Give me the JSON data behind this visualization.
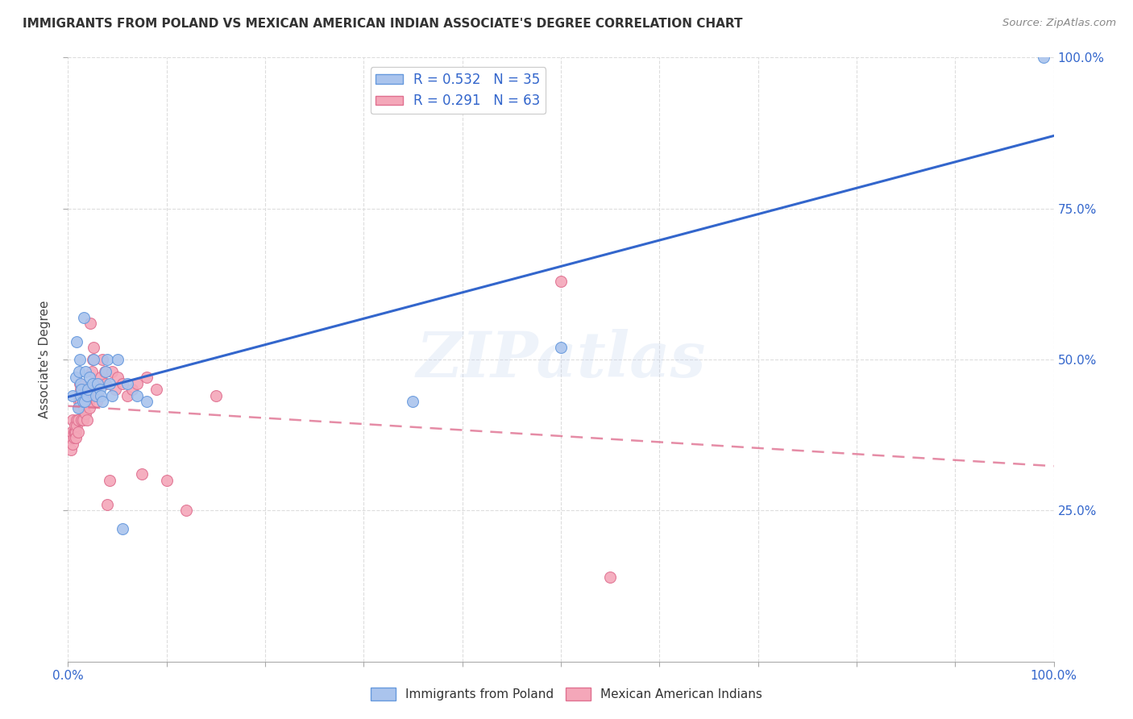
{
  "title": "IMMIGRANTS FROM POLAND VS MEXICAN AMERICAN INDIAN ASSOCIATE'S DEGREE CORRELATION CHART",
  "source": "Source: ZipAtlas.com",
  "ylabel": "Associate's Degree",
  "series1": {
    "label": "Immigrants from Poland",
    "color": "#aac4ed",
    "border_color": "#6699dd",
    "R": 0.532,
    "N": 35,
    "line_color": "#3366cc",
    "x": [
      0.005,
      0.008,
      0.009,
      0.01,
      0.011,
      0.012,
      0.013,
      0.013,
      0.014,
      0.015,
      0.016,
      0.017,
      0.018,
      0.019,
      0.02,
      0.022,
      0.025,
      0.026,
      0.028,
      0.03,
      0.032,
      0.033,
      0.035,
      0.038,
      0.04,
      0.042,
      0.045,
      0.05,
      0.055,
      0.06,
      0.07,
      0.08,
      0.35,
      0.5,
      0.99
    ],
    "y": [
      0.44,
      0.47,
      0.53,
      0.42,
      0.48,
      0.5,
      0.46,
      0.44,
      0.45,
      0.43,
      0.57,
      0.43,
      0.48,
      0.44,
      0.45,
      0.47,
      0.46,
      0.5,
      0.44,
      0.46,
      0.45,
      0.44,
      0.43,
      0.48,
      0.5,
      0.46,
      0.44,
      0.5,
      0.22,
      0.46,
      0.44,
      0.43,
      0.43,
      0.52,
      1.0
    ]
  },
  "series2": {
    "label": "Mexican American Indians",
    "color": "#f4a7b9",
    "border_color": "#e07090",
    "R": 0.291,
    "N": 63,
    "line_color": "#dd6688",
    "x": [
      0.002,
      0.003,
      0.004,
      0.005,
      0.005,
      0.006,
      0.006,
      0.007,
      0.007,
      0.008,
      0.008,
      0.009,
      0.009,
      0.01,
      0.01,
      0.011,
      0.011,
      0.012,
      0.012,
      0.013,
      0.013,
      0.014,
      0.015,
      0.015,
      0.016,
      0.016,
      0.017,
      0.018,
      0.018,
      0.019,
      0.02,
      0.021,
      0.022,
      0.023,
      0.024,
      0.025,
      0.026,
      0.027,
      0.028,
      0.029,
      0.03,
      0.032,
      0.033,
      0.035,
      0.037,
      0.038,
      0.04,
      0.042,
      0.045,
      0.048,
      0.05,
      0.055,
      0.06,
      0.065,
      0.07,
      0.075,
      0.08,
      0.09,
      0.1,
      0.12,
      0.15,
      0.5,
      0.55
    ],
    "y": [
      0.37,
      0.35,
      0.38,
      0.36,
      0.4,
      0.37,
      0.38,
      0.38,
      0.39,
      0.38,
      0.37,
      0.4,
      0.39,
      0.4,
      0.38,
      0.44,
      0.43,
      0.46,
      0.42,
      0.45,
      0.43,
      0.4,
      0.44,
      0.4,
      0.45,
      0.42,
      0.43,
      0.41,
      0.44,
      0.4,
      0.44,
      0.43,
      0.42,
      0.56,
      0.48,
      0.5,
      0.52,
      0.45,
      0.44,
      0.43,
      0.44,
      0.46,
      0.47,
      0.5,
      0.48,
      0.46,
      0.26,
      0.3,
      0.48,
      0.45,
      0.47,
      0.46,
      0.44,
      0.45,
      0.46,
      0.31,
      0.47,
      0.45,
      0.3,
      0.25,
      0.44,
      0.63,
      0.14
    ]
  },
  "watermark": "ZIPatlas",
  "background_color": "#ffffff",
  "grid_color": "#dddddd",
  "xlim": [
    0.0,
    1.0
  ],
  "ylim": [
    0.0,
    1.0
  ],
  "yticks": [
    0.25,
    0.5,
    0.75,
    1.0
  ],
  "xticks": [
    0.0,
    0.1,
    0.2,
    0.3,
    0.4,
    0.5,
    0.6,
    0.7,
    0.8,
    0.9,
    1.0
  ]
}
